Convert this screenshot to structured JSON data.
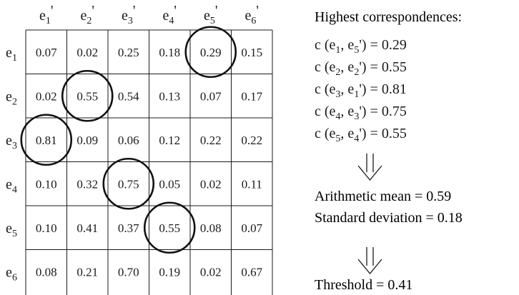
{
  "matrix": {
    "col_headers": [
      {
        "base": "e",
        "sub": "1",
        "mark": "'"
      },
      {
        "base": "e",
        "sub": "2",
        "mark": "'"
      },
      {
        "base": "e",
        "sub": "3",
        "mark": "'"
      },
      {
        "base": "e",
        "sub": "4",
        "mark": "'"
      },
      {
        "base": "e",
        "sub": "5",
        "mark": "'"
      },
      {
        "base": "e",
        "sub": "6",
        "mark": "'"
      }
    ],
    "row_headers": [
      {
        "base": "e",
        "sub": "1"
      },
      {
        "base": "e",
        "sub": "2"
      },
      {
        "base": "e",
        "sub": "3"
      },
      {
        "base": "e",
        "sub": "4"
      },
      {
        "base": "e",
        "sub": "5"
      },
      {
        "base": "e",
        "sub": "6"
      }
    ],
    "values": [
      [
        "0.07",
        "0.02",
        "0.25",
        "0.18",
        "0.29",
        "0.15"
      ],
      [
        "0.02",
        "0.55",
        "0.54",
        "0.13",
        "0.07",
        "0.17"
      ],
      [
        "0.81",
        "0.09",
        "0.06",
        "0.12",
        "0.22",
        "0.22"
      ],
      [
        "0.10",
        "0.32",
        "0.75",
        "0.05",
        "0.02",
        "0.11"
      ],
      [
        "0.10",
        "0.41",
        "0.37",
        "0.55",
        "0.08",
        "0.07"
      ],
      [
        "0.08",
        "0.21",
        "0.70",
        "0.19",
        "0.02",
        "0.67"
      ]
    ],
    "circled": [
      [
        0,
        4
      ],
      [
        1,
        1
      ],
      [
        2,
        0
      ],
      [
        3,
        2
      ],
      [
        4,
        3
      ]
    ]
  },
  "side": {
    "title": "Highest correspondences:",
    "pairs": [
      {
        "prefix": "c (e",
        "a": "1",
        "mid": ", e",
        "b": "5",
        "suffix": "') = 0.29"
      },
      {
        "prefix": "c (e",
        "a": "2",
        "mid": ", e",
        "b": "2",
        "suffix": "') = 0.55"
      },
      {
        "prefix": "c (e",
        "a": "3",
        "mid": ", e",
        "b": "1",
        "suffix": "') = 0.81"
      },
      {
        "prefix": "c (e",
        "a": "4",
        "mid": ", e",
        "b": "3",
        "suffix": "') = 0.75"
      },
      {
        "prefix": "c (e",
        "a": "5",
        "mid": ", e",
        "b": "4",
        "suffix": "') = 0.55"
      }
    ],
    "mean": "Arithmetic mean = 0.59",
    "std": "Standard deviation = 0.18",
    "threshold": "Threshold = 0.41"
  },
  "colors": {
    "ink": "#1a1a1a",
    "grid": "#1a1a1a",
    "circle": "#111111",
    "background": "#ffffff"
  }
}
